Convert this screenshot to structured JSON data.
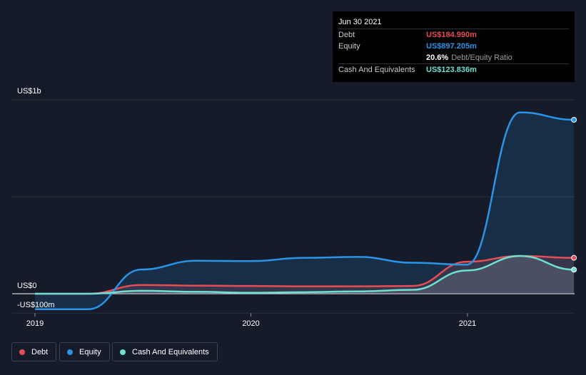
{
  "tooltip": {
    "date": "Jun 30 2021",
    "rows": [
      {
        "label": "Debt",
        "value": "US$184.990m",
        "color": "#e64d55"
      },
      {
        "label": "Equity",
        "value": "US$897.205m",
        "color": "#2994e8"
      },
      {
        "label": "",
        "value": "20.6%",
        "suffix": "Debt/Equity Ratio",
        "color": "#ffffff"
      },
      {
        "label": "Cash And Equivalents",
        "value": "US$123.836m",
        "color": "#6ee0d2"
      }
    ]
  },
  "y_axis": {
    "top_label": "US$1b",
    "zero_label": "US$0",
    "bottom_label": "-US$100m"
  },
  "legend": [
    {
      "label": "Debt",
      "color": "#e64d55"
    },
    {
      "label": "Equity",
      "color": "#2994e8"
    },
    {
      "label": "Cash And Equivalents",
      "color": "#6ee0d2"
    }
  ],
  "colors": {
    "background": "#151b28",
    "grid": "#2a303c",
    "debt": "#e64d55",
    "equity": "#2994e8",
    "cash": "#6ee0d2"
  },
  "chart_data": {
    "type": "area",
    "ylim": [
      -100,
      1000
    ],
    "y_unit": "US$ millions",
    "x_ticks": [
      "2019",
      "2020",
      "2021"
    ],
    "x_range": [
      "2019-01-01",
      "2021-07-01"
    ],
    "grid": true,
    "legend_position": "bottom",
    "series": [
      {
        "name": "Debt",
        "color": "#e64d55",
        "x": [
          "2019-01-01",
          "2019-04-01",
          "2019-06-30",
          "2019-09-30",
          "2019-12-31",
          "2020-03-31",
          "2020-06-30",
          "2020-09-30",
          "2020-12-31",
          "2021-03-31",
          "2021-06-30"
        ],
        "values": [
          0,
          0,
          45,
          42,
          40,
          38,
          38,
          40,
          165,
          195,
          185
        ]
      },
      {
        "name": "Equity",
        "color": "#2994e8",
        "x": [
          "2019-01-01",
          "2019-04-01",
          "2019-06-30",
          "2019-09-30",
          "2019-12-31",
          "2020-03-31",
          "2020-06-30",
          "2020-09-30",
          "2020-12-31",
          "2021-03-31",
          "2021-06-30"
        ],
        "values": [
          -80,
          -80,
          125,
          170,
          168,
          185,
          190,
          160,
          150,
          935,
          897
        ]
      },
      {
        "name": "Cash And Equivalents",
        "color": "#6ee0d2",
        "x": [
          "2019-01-01",
          "2019-04-01",
          "2019-06-30",
          "2019-09-30",
          "2019-12-31",
          "2020-03-31",
          "2020-06-30",
          "2020-09-30",
          "2020-12-31",
          "2021-03-31",
          "2021-06-30"
        ],
        "values": [
          0,
          0,
          15,
          10,
          5,
          8,
          12,
          20,
          120,
          195,
          124
        ]
      }
    ]
  }
}
